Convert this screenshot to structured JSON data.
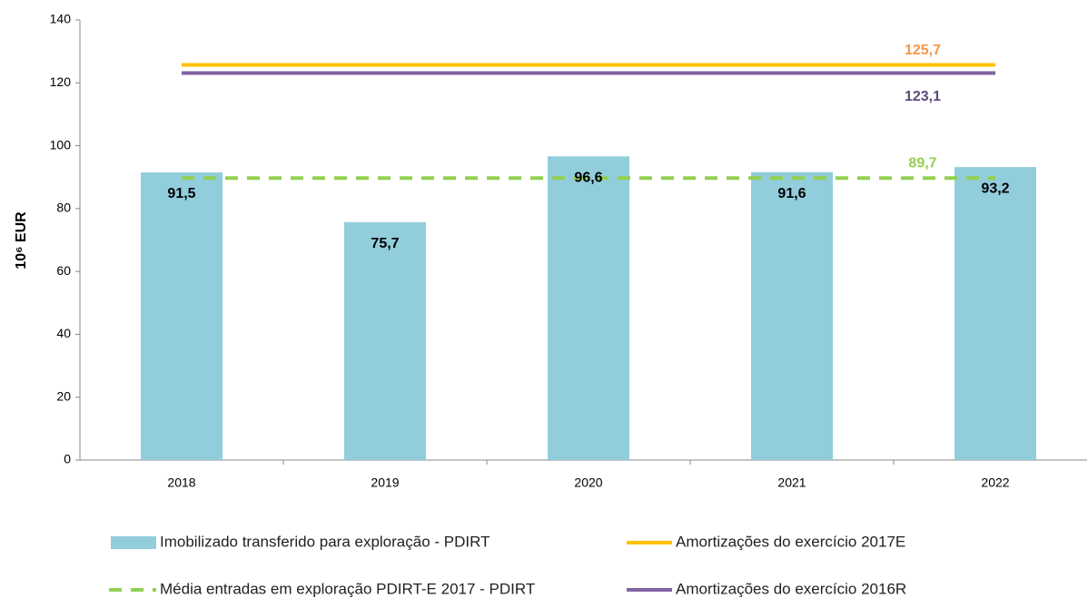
{
  "chart_data": {
    "type": "bar",
    "y_label": "10⁶ EUR",
    "categories": [
      "2018",
      "2019",
      "2020",
      "2021",
      "2022"
    ],
    "ylim": [
      0,
      140
    ],
    "yticks": [
      0,
      20,
      40,
      60,
      80,
      100,
      120,
      140
    ],
    "series": [
      {
        "name": "Imobilizado transferido para exploração - PDIRT",
        "type": "bar",
        "color": "#92cddc",
        "values": [
          91.5,
          75.7,
          96.6,
          91.6,
          93.2
        ],
        "value_labels": [
          "91,5",
          "75,7",
          "96,6",
          "91,6",
          "93,2"
        ],
        "label_color": "#000000"
      },
      {
        "name": "Amortizações do exercício 2017E",
        "type": "line",
        "color": "#ffc000",
        "values": [
          125.7,
          125.7,
          125.7,
          125.7,
          125.7
        ],
        "value_labels": [
          null,
          null,
          null,
          null,
          "125,7"
        ],
        "label_color": "#f79646"
      },
      {
        "name": "Média entradas em exploração PDIRT-E 2017 - PDIRT",
        "type": "line",
        "dashed": true,
        "color": "#92d050",
        "values": [
          89.7,
          89.7,
          89.7,
          89.7,
          89.7
        ],
        "value_labels": [
          null,
          null,
          null,
          null,
          "89,7"
        ],
        "label_color": "#92d050"
      },
      {
        "name": "Amortizações do exercício 2016R",
        "type": "line",
        "color": "#8064a2",
        "values": [
          123.1,
          123.1,
          123.1,
          123.1,
          123.1
        ],
        "value_labels": [
          null,
          null,
          null,
          null,
          "123,1"
        ],
        "label_color": "#5f497a"
      }
    ]
  }
}
